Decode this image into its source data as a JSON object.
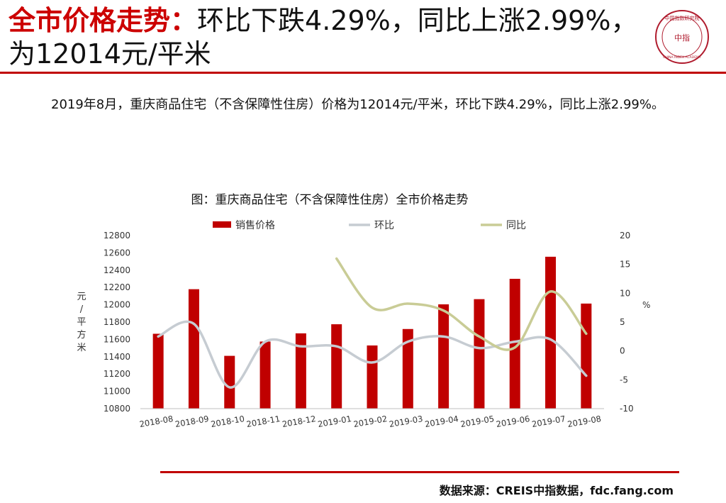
{
  "header": {
    "title_highlight": "全市价格走势：",
    "title_rest": "环比下跌4.29%，同比上涨2.99%，为12014元/平米",
    "logo_text": "中国指数研究院",
    "logo_center": "中指",
    "logo_sub": "CHINA INDEX ACADEMY",
    "accent": "#c00000"
  },
  "summary": {
    "text": "2019年8月，重庆商品住宅（不含保障性住房）价格为12014元/平米，环比下跌4.29%，同比上涨2.99%。"
  },
  "footer": {
    "source": "数据来源：CREIS中指数据，fdc.fang.com"
  },
  "chart_data": {
    "type": "bar",
    "title": "图：重庆商品住宅（不含保障性住房）全市价格走势",
    "categories": [
      "2018-08",
      "2018-09",
      "2018-10",
      "2018-11",
      "2018-12",
      "2019-01",
      "2019-02",
      "2019-03",
      "2019-04",
      "2019-05",
      "2019-06",
      "2019-07",
      "2019-08"
    ],
    "series": [
      {
        "name": "销售价格",
        "type": "bar",
        "axis": "left",
        "color": "#c00000",
        "values": [
          11665,
          12180,
          11410,
          11575,
          11670,
          11775,
          11530,
          11720,
          12005,
          12065,
          12300,
          12555,
          12014
        ]
      },
      {
        "name": "环比",
        "type": "line",
        "axis": "right",
        "color": "#c6ccd2",
        "values": [
          2.5,
          4.7,
          -6.3,
          1.6,
          0.8,
          0.8,
          -2.0,
          1.6,
          2.5,
          0.5,
          1.6,
          2.0,
          -4.29
        ]
      },
      {
        "name": "同比",
        "type": "line",
        "axis": "right",
        "color": "#c9cc96",
        "values": [
          null,
          null,
          null,
          null,
          null,
          16.0,
          7.5,
          8.2,
          7.0,
          2.5,
          0.6,
          10.3,
          2.99
        ]
      }
    ],
    "ylabel": "元/平方米",
    "y2label": "%",
    "ylim": [
      10800,
      12800
    ],
    "yticks": [
      10800,
      11000,
      11200,
      11400,
      11600,
      11800,
      12000,
      12200,
      12400,
      12600,
      12800
    ],
    "y2lim": [
      -10,
      20
    ],
    "y2ticks": [
      -10,
      -5,
      0,
      5,
      10,
      15,
      20
    ],
    "grid": false,
    "legend": "top"
  }
}
